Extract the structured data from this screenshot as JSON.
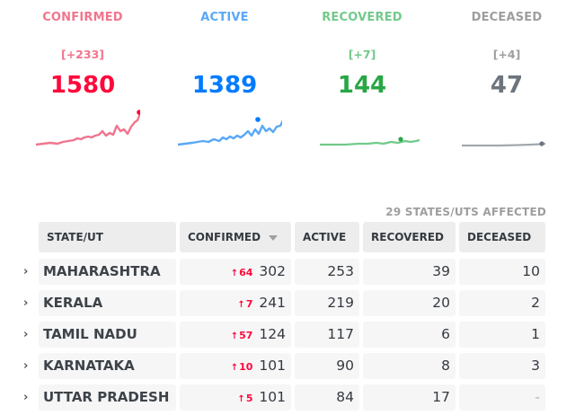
{
  "stats": {
    "confirmed": {
      "label": "CONFIRMED",
      "delta": "[+233]",
      "count": "1580",
      "color": "#ff073a",
      "line_color": "#f0758d"
    },
    "active": {
      "label": "ACTIVE",
      "delta": "",
      "count": "1389",
      "color": "#007bff",
      "line_color": "#5aa8f5"
    },
    "recovered": {
      "label": "RECOVERED",
      "delta": "[+7]",
      "count": "144",
      "color": "#28a745",
      "line_color": "#72c98a"
    },
    "deceased": {
      "label": "DECEASED",
      "delta": "[+4]",
      "count": "47",
      "color": "#6c757d",
      "line_color": "#a3a8ad"
    }
  },
  "affected_label": "29 STATES/UTS AFFECTED",
  "table": {
    "headers": {
      "state": "STATE/UT",
      "confirmed": "CONFIRMED",
      "active": "ACTIVE",
      "recovered": "RECOVERED",
      "deceased": "DECEASED"
    },
    "rows": [
      {
        "state": "MAHARASHTRA",
        "confirmed_delta": "64",
        "confirmed": "302",
        "active": "253",
        "recovered": "39",
        "deceased": "10"
      },
      {
        "state": "KERALA",
        "confirmed_delta": "7",
        "confirmed": "241",
        "active": "219",
        "recovered": "20",
        "deceased": "2"
      },
      {
        "state": "TAMIL NADU",
        "confirmed_delta": "57",
        "confirmed": "124",
        "active": "117",
        "recovered": "6",
        "deceased": "1"
      },
      {
        "state": "KARNATAKA",
        "confirmed_delta": "10",
        "confirmed": "101",
        "active": "90",
        "recovered": "8",
        "deceased": "3"
      },
      {
        "state": "UTTAR PRADESH",
        "confirmed_delta": "5",
        "confirmed": "101",
        "active": "84",
        "recovered": "17",
        "deceased": "-"
      }
    ]
  }
}
